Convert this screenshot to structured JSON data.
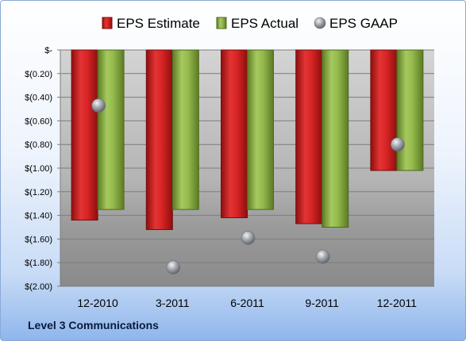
{
  "chart_data": {
    "type": "bar",
    "categories": [
      "12-2010",
      "3-2011",
      "6-2011",
      "9-2011",
      "12-2011"
    ],
    "series": [
      {
        "name": "EPS Estimate",
        "kind": "bar",
        "color": "#cc1b1b",
        "values": [
          -1.44,
          -1.52,
          -1.42,
          -1.47,
          -1.02
        ]
      },
      {
        "name": "EPS Actual",
        "kind": "bar",
        "color": "#8db049",
        "values": [
          -1.35,
          -1.35,
          -1.35,
          -1.5,
          -1.02
        ]
      },
      {
        "name": "EPS GAAP",
        "kind": "marker",
        "color": "#9aa0a8",
        "values": [
          -0.47,
          -1.84,
          -1.59,
          -1.75,
          -0.8
        ]
      }
    ],
    "yticks": [
      "$-",
      "$(0.20)",
      "$(0.40)",
      "$(0.60)",
      "$(0.80)",
      "$(1.00)",
      "$(1.20)",
      "$(1.40)",
      "$(1.60)",
      "$(1.80)",
      "$(2.00)"
    ],
    "ylim": [
      -2.0,
      0
    ],
    "grid": true,
    "legend_position": "top"
  },
  "footer": {
    "company": "Level 3 Communications"
  }
}
